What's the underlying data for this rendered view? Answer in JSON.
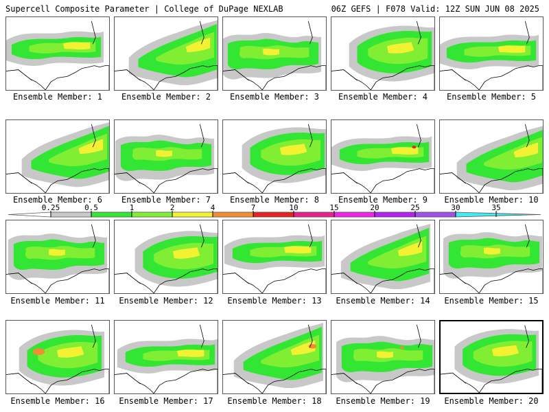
{
  "header": {
    "title_left": "Supercell Composite Parameter | College of DuPage NEXLAB",
    "title_right": "06Z GEFS | F078 Valid: 12Z SUN JUN 08 2025"
  },
  "member_prefix": "Ensemble Member:",
  "members": [
    {
      "id": "1"
    },
    {
      "id": "2"
    },
    {
      "id": "3"
    },
    {
      "id": "4"
    },
    {
      "id": "5"
    },
    {
      "id": "6"
    },
    {
      "id": "7"
    },
    {
      "id": "8"
    },
    {
      "id": "9"
    },
    {
      "id": "10"
    },
    {
      "id": "11"
    },
    {
      "id": "12"
    },
    {
      "id": "13"
    },
    {
      "id": "14"
    },
    {
      "id": "15"
    },
    {
      "id": "16"
    },
    {
      "id": "17"
    },
    {
      "id": "18"
    },
    {
      "id": "19"
    },
    {
      "id": "20"
    }
  ],
  "selected_member": "20",
  "colorbar": {
    "levels": [
      "0.25",
      "0.5",
      "1",
      "2",
      "4",
      "7",
      "10",
      "15",
      "20",
      "25",
      "30",
      "35"
    ],
    "colors": [
      "#c8c8c8",
      "#33e633",
      "#80ee33",
      "#f2f233",
      "#f28c33",
      "#e62222",
      "#e6228c",
      "#f022e6",
      "#b422f0",
      "#a050e6",
      "#44eaf0"
    ],
    "below_color": "#ffffff",
    "above_color": "#44eaf0"
  },
  "map_colors": {
    "level1": "#c8c8c8",
    "level2": "#33e633",
    "level3": "#80ee33",
    "level4": "#f2f233",
    "level5": "#f28c33",
    "level6": "#e62222"
  }
}
